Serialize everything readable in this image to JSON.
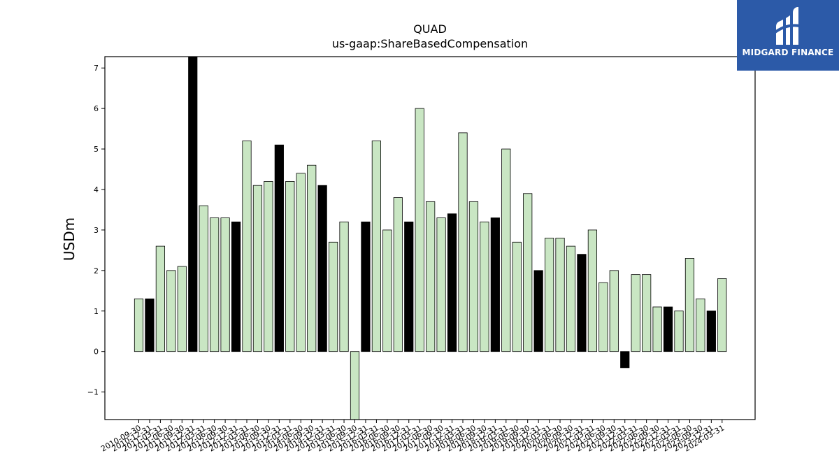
{
  "chart_data": {
    "type": "bar",
    "title": "QUAD",
    "subtitle": "us-gaap:ShareBasedCompensation",
    "ylabel": "USDm",
    "xlabel": "",
    "ylim": [
      -1.68,
      7.28
    ],
    "yticks": [
      -1,
      0,
      1,
      2,
      3,
      4,
      5,
      6,
      7
    ],
    "grid": false,
    "colors": {
      "light": "#c9e6c3",
      "dark": "#000000",
      "edge": "#000000"
    },
    "categories": [
      "2010-09-30",
      "2010-12-31",
      "2011-03-31",
      "2011-06-30",
      "2011-09-30",
      "2011-12-31",
      "2012-03-31",
      "2012-06-30",
      "2012-09-30",
      "2012-12-31",
      "2013-03-31",
      "2013-06-30",
      "2013-09-30",
      "2013-12-31",
      "2014-03-31",
      "2014-06-30",
      "2014-09-30",
      "2014-12-31",
      "2015-03-31",
      "2015-06-30",
      "2015-09-30",
      "2015-12-31",
      "2016-03-31",
      "2016-06-30",
      "2016-09-30",
      "2016-12-31",
      "2017-03-31",
      "2017-06-30",
      "2017-09-30",
      "2017-12-31",
      "2018-03-31",
      "2018-06-30",
      "2018-09-30",
      "2018-12-31",
      "2019-03-31",
      "2019-06-30",
      "2019-09-30",
      "2019-12-31",
      "2020-03-31",
      "2020-06-30",
      "2020-09-30",
      "2020-12-31",
      "2021-03-31",
      "2021-06-30",
      "2021-09-30",
      "2021-12-31",
      "2022-03-31",
      "2022-06-30",
      "2022-09-30",
      "2022-12-31",
      "2023-03-31",
      "2023-06-30",
      "2023-09-30",
      "2023-12-31",
      "2024-03-31"
    ],
    "xtick_labels": [
      "2010-09-30",
      "2010-12-31",
      "2011-03-31",
      "2011-06-30",
      "2011-09-30",
      "2011-12-31",
      "2012-03-31",
      "2012-06-30",
      "2012-09-30",
      "2012-12-31",
      "2013-03-31",
      "2013-06-30",
      "2013-09-30",
      "2013-12-31",
      "2014-03-31",
      "2014-06-30",
      "2014-09-30",
      "2014-12-31",
      "2015-03-31",
      "2015-06-30",
      "2015-09-30",
      "2015-12-31",
      "2016-03-31",
      "2016-06-30",
      "2016-09-30",
      "2016-12-31",
      "2017-03-31",
      "2017-06-30",
      "2017-09-30",
      "2017-12-31",
      "2018-03-31",
      "2018-06-30",
      "2018-09-30",
      "2018-12-31",
      "2019-03-31",
      "2019-06-30",
      "2019-09-30",
      "2019-12-31",
      "2020-03-31",
      "2020-06-30",
      "2020-09-30",
      "2020-12-31",
      "2021-03-31",
      "2021-06-30",
      "2021-09-30",
      "2021-12-31",
      "2022-03-31",
      "2022-06-30",
      "2022-09-30",
      "2022-12-31",
      "2023-03-31",
      "2023-06-30",
      "2023-09-30",
      "2023-12-31",
      "2024-03-31"
    ],
    "values": [
      1.3,
      1.3,
      2.6,
      2.0,
      2.1,
      7.3,
      3.6,
      3.3,
      3.3,
      3.2,
      5.2,
      4.1,
      4.2,
      5.1,
      4.2,
      4.4,
      4.6,
      4.1,
      2.7,
      3.2,
      -1.8,
      3.2,
      5.2,
      3.0,
      3.8,
      3.2,
      6.0,
      3.7,
      3.3,
      3.4,
      5.4,
      3.7,
      3.2,
      3.3,
      5.0,
      2.7,
      3.9,
      2.0,
      2.8,
      2.8,
      2.6,
      2.4,
      3.0,
      1.7,
      2.0,
      -0.4,
      1.9,
      1.9,
      1.1,
      1.1,
      1.0,
      2.3,
      1.3,
      1.0,
      1.8
    ],
    "highlight": [
      false,
      true,
      false,
      false,
      false,
      true,
      false,
      false,
      false,
      true,
      false,
      false,
      false,
      true,
      false,
      false,
      false,
      true,
      false,
      false,
      false,
      true,
      false,
      false,
      false,
      true,
      false,
      false,
      false,
      true,
      false,
      false,
      false,
      true,
      false,
      false,
      false,
      true,
      false,
      false,
      false,
      true,
      false,
      false,
      false,
      true,
      false,
      false,
      false,
      true,
      false,
      false,
      false,
      true,
      false
    ]
  },
  "brand": {
    "name": "MIDGARD FINANCE",
    "color": "#2c5aa8",
    "icon": "midgard-logo-icon"
  }
}
